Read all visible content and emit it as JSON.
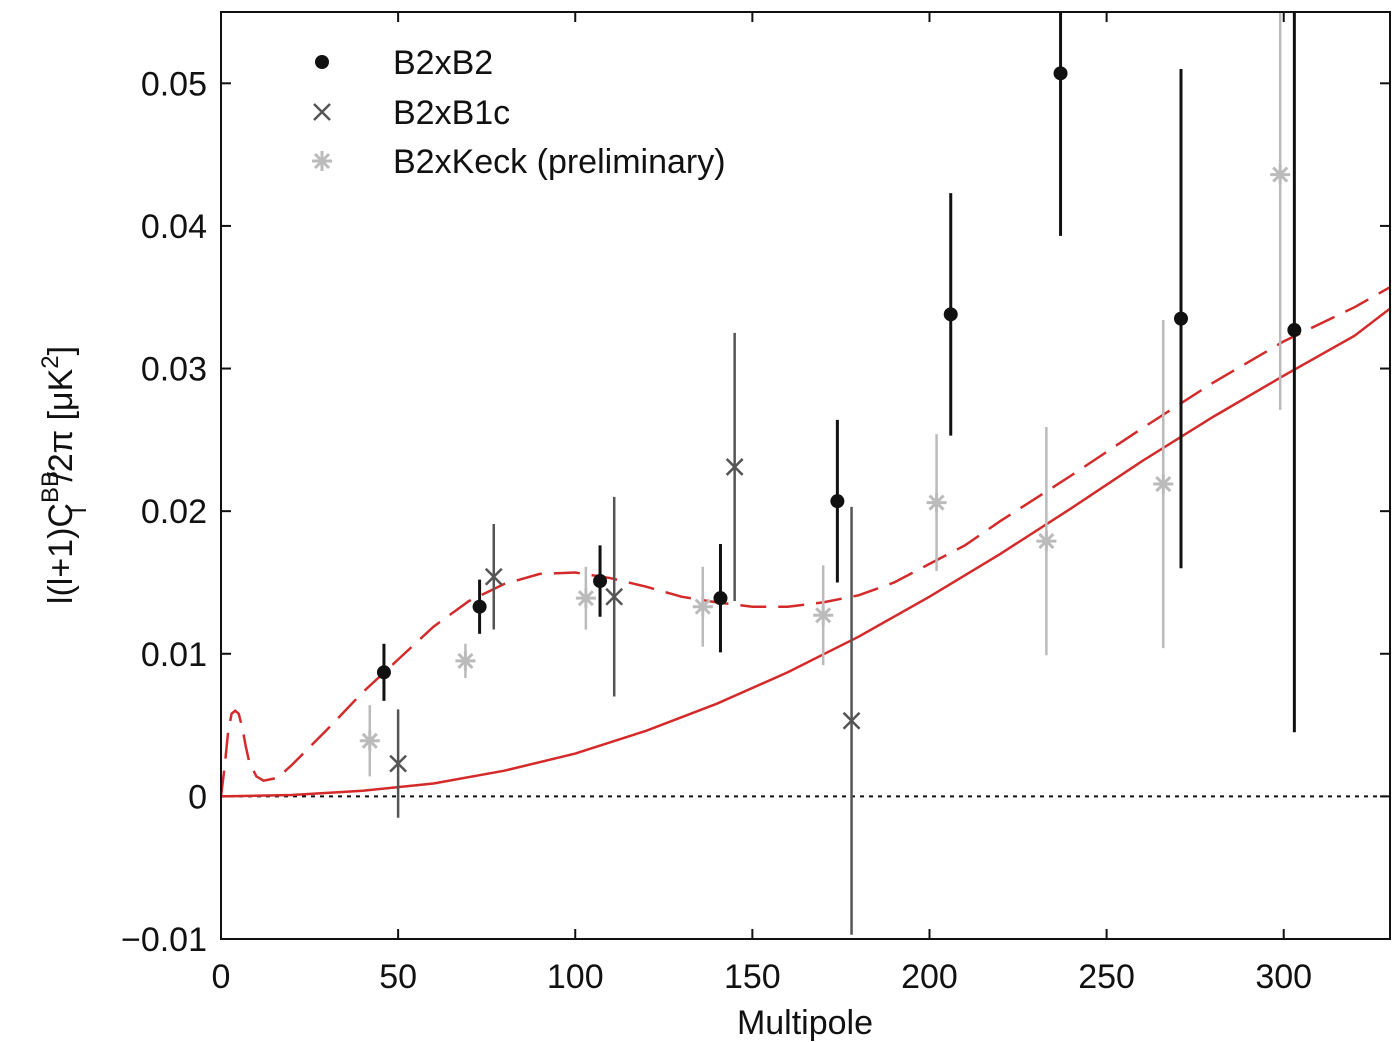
{
  "chart_data": {
    "type": "scatter",
    "xlabel": "Multipole",
    "ylabel_parts": {
      "pre": "l(l+1)C",
      "sup": "BB",
      "sub": "l",
      "mid": "/2π [μK",
      "sup2": "2",
      "post": "]"
    },
    "xlim": [
      0,
      330
    ],
    "ylim": [
      -0.01,
      0.055
    ],
    "x_ticks": [
      0,
      50,
      100,
      150,
      200,
      250,
      300
    ],
    "x_tick_labels": [
      "0",
      "50",
      "100",
      "150",
      "200",
      "250",
      "300"
    ],
    "y_ticks": [
      -0.01,
      0,
      0.01,
      0.02,
      0.03,
      0.04,
      0.05
    ],
    "y_tick_labels": [
      "−0.01",
      "0",
      "0.01",
      "0.02",
      "0.03",
      "0.04",
      "0.05"
    ],
    "legend_position": "top-left",
    "series": [
      {
        "name": "B2xB2",
        "marker": "dot",
        "color": "#111111",
        "points": [
          {
            "x": 46,
            "y": 0.0087,
            "err": 0.002
          },
          {
            "x": 73,
            "y": 0.0133,
            "err": 0.0019
          },
          {
            "x": 107,
            "y": 0.0151,
            "err": 0.0025
          },
          {
            "x": 141,
            "y": 0.0139,
            "err": 0.0038
          },
          {
            "x": 174,
            "y": 0.0207,
            "err": 0.0057
          },
          {
            "x": 206,
            "y": 0.0338,
            "err": 0.0085
          },
          {
            "x": 237,
            "y": 0.0507,
            "err": 0.0114
          },
          {
            "x": 271,
            "y": 0.0335,
            "err": 0.0175
          },
          {
            "x": 303,
            "y": 0.0327,
            "err": 0.0282
          }
        ]
      },
      {
        "name": "B2xB1c",
        "marker": "x",
        "color": "#555555",
        "points": [
          {
            "x": 50,
            "y": 0.0023,
            "err": 0.0038
          },
          {
            "x": 77,
            "y": 0.0154,
            "err": 0.0037
          },
          {
            "x": 111,
            "y": 0.014,
            "err": 0.007
          },
          {
            "x": 145,
            "y": 0.0231,
            "err": 0.0094
          },
          {
            "x": 178,
            "y": 0.0053,
            "err": 0.015
          }
        ]
      },
      {
        "name": "B2xKeck (preliminary)",
        "marker": "star",
        "color": "#bbbbbb",
        "points": [
          {
            "x": 42,
            "y": 0.0039,
            "err": 0.0025
          },
          {
            "x": 69,
            "y": 0.0095,
            "err": 0.0012
          },
          {
            "x": 103,
            "y": 0.0139,
            "err": 0.0022
          },
          {
            "x": 136,
            "y": 0.0133,
            "err": 0.0028
          },
          {
            "x": 170,
            "y": 0.0127,
            "err": 0.0035
          },
          {
            "x": 202,
            "y": 0.0206,
            "err": 0.0048
          },
          {
            "x": 233,
            "y": 0.0179,
            "err": 0.008
          },
          {
            "x": 266,
            "y": 0.0219,
            "err": 0.0115
          },
          {
            "x": 299,
            "y": 0.0436,
            "err": 0.0165
          }
        ]
      }
    ],
    "model_curves": [
      {
        "style": "solid",
        "color": "#d42a2a",
        "points": [
          [
            0,
            0
          ],
          [
            20,
            0.0001
          ],
          [
            40,
            0.0004
          ],
          [
            60,
            0.0009
          ],
          [
            80,
            0.0018
          ],
          [
            100,
            0.003
          ],
          [
            120,
            0.0046
          ],
          [
            140,
            0.0065
          ],
          [
            160,
            0.0087
          ],
          [
            180,
            0.0112
          ],
          [
            200,
            0.014
          ],
          [
            220,
            0.017
          ],
          [
            240,
            0.0202
          ],
          [
            260,
            0.0235
          ],
          [
            280,
            0.0266
          ],
          [
            300,
            0.0295
          ],
          [
            320,
            0.0323
          ],
          [
            330,
            0.0342
          ]
        ]
      },
      {
        "style": "dashed",
        "color": "#d42a2a",
        "points": [
          [
            0,
            0
          ],
          [
            1,
            0.002
          ],
          [
            2,
            0.0045
          ],
          [
            3,
            0.0058
          ],
          [
            4,
            0.006
          ],
          [
            5,
            0.0058
          ],
          [
            6,
            0.0048
          ],
          [
            7,
            0.0035
          ],
          [
            8,
            0.0024
          ],
          [
            10,
            0.0014
          ],
          [
            12,
            0.0011
          ],
          [
            16,
            0.0013
          ],
          [
            20,
            0.0022
          ],
          [
            30,
            0.0047
          ],
          [
            40,
            0.0073
          ],
          [
            50,
            0.0096
          ],
          [
            60,
            0.0119
          ],
          [
            70,
            0.0137
          ],
          [
            80,
            0.0149
          ],
          [
            90,
            0.0156
          ],
          [
            100,
            0.0157
          ],
          [
            110,
            0.0153
          ],
          [
            120,
            0.0147
          ],
          [
            130,
            0.014
          ],
          [
            140,
            0.0136
          ],
          [
            150,
            0.0133
          ],
          [
            160,
            0.0133
          ],
          [
            170,
            0.0136
          ],
          [
            180,
            0.0141
          ],
          [
            190,
            0.015
          ],
          [
            200,
            0.0163
          ],
          [
            210,
            0.0176
          ],
          [
            220,
            0.0193
          ],
          [
            240,
            0.0225
          ],
          [
            260,
            0.0258
          ],
          [
            280,
            0.029
          ],
          [
            300,
            0.0319
          ],
          [
            320,
            0.0343
          ],
          [
            330,
            0.0357
          ]
        ]
      }
    ],
    "zero_line": {
      "y": 0,
      "style": "dotted",
      "color": "#111111"
    }
  }
}
